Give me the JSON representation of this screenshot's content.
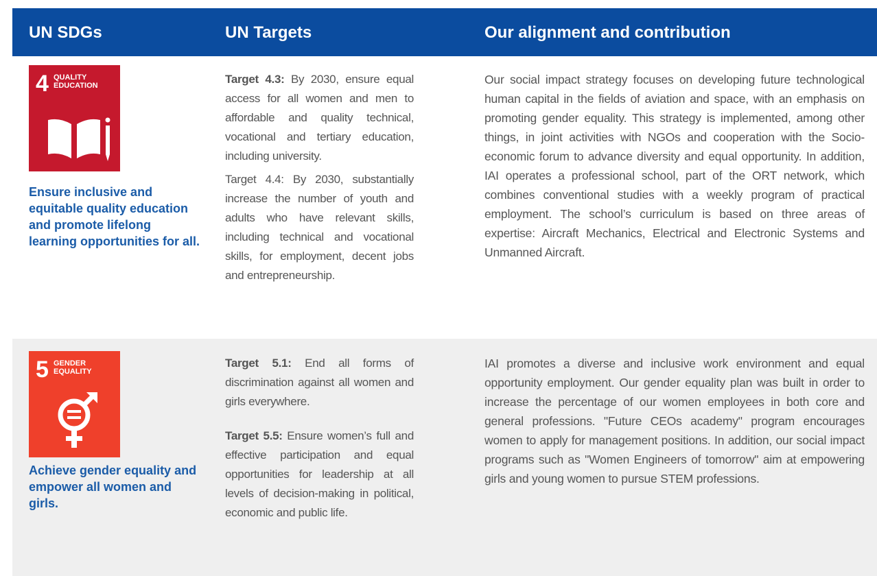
{
  "header": {
    "col1": "UN SDGs",
    "col2": "UN Targets",
    "col3": "Our alignment and contribution"
  },
  "rows": [
    {
      "sdg_number": "4",
      "sdg_name": [
        "QUALITY",
        "EDUCATION"
      ],
      "goal": "Ensure inclusive and equitable quality education and promote lifelong learning opportunities for all.",
      "targets": [
        {
          "label": "Target 4.3:",
          "text": "By 2030, ensure equal access for all women and men to affordable and quality technical, vocational and tertiary education, including university."
        },
        {
          "text": "Target 4.4: By 2030, substantially increase the number of youth and adults who have relevant skills, including technical and vocational skills, for employment, decent jobs and entrepreneurship."
        }
      ],
      "alignment": "Our social impact strategy focuses on developing future technological human capital in the fields of aviation and space, with an emphasis on promoting gender equality. This strategy is implemented, among other things, in joint activities with NGOs and cooperation with the Socio-economic forum to advance diversity and equal opportunity. In addition, IAI operates a professional school, part of the ORT network, which combines conventional studies with a weekly program of practical employment. The school’s curriculum is based on three areas of expertise: Aircraft Mechanics, Electrical and Electronic Systems and Unmanned Aircraft."
    },
    {
      "sdg_number": "5",
      "sdg_name": [
        "GENDER",
        "EQUALITY"
      ],
      "goal": "Achieve gender equality and empower all women and girls.",
      "targets": [
        {
          "label": "Target 5.1:",
          "text": "End all forms of discrimination against all women and girls everywhere."
        },
        {
          "label": "Target 5.5:",
          "text": "Ensure women’s full and effective participation and equal opportunities for leadership at all levels of decision-making in political, economic and public life."
        }
      ],
      "alignment": "IAI promotes a diverse and inclusive work environment and equal opportunity employment. Our gender equality plan was built in order to increase the percentage of our women employees in both core and general professions. \"Future CEOs academy\" program encourages women to apply for management positions. In addition, our social impact programs such as \"Women Engineers of tomorrow\" aim at empowering girls and young women to pursue STEM professions."
    }
  ]
}
